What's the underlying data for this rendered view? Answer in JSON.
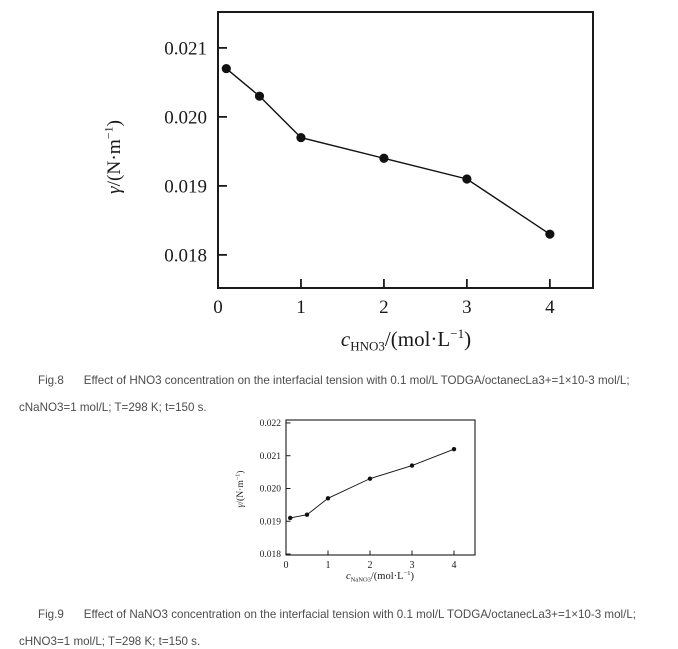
{
  "page": {
    "background": "#ffffff",
    "caption_text_color": "#4c4c4c",
    "axis_color": "#1a1a1a"
  },
  "figures": [
    {
      "label": "Fig.8",
      "caption_line1": "Effect of HNO3 concentration on the interfacial tension with 0.1 mol/L TODGA/octanecLa3+=1×10-3 mol/L;",
      "caption_line2": "cNaNO3=1 mol/L; T=298 K; t=150 s."
    },
    {
      "label": "Fig.9",
      "caption_line1": "Effect of NaNO3 concentration on the interfacial tension with 0.1 mol/L TODGA/octanecLa3+=1×10-3 mol/L;",
      "caption_line2": "cHNO3=1 mol/L; T=298 K; t=150 s."
    }
  ],
  "chart_data": [
    {
      "id": "fig8",
      "type": "line",
      "title": "",
      "series_name": "interfacial tension vs HNO3 concentration",
      "x": [
        0.1,
        0.5,
        1,
        2,
        3,
        4
      ],
      "y": [
        0.0207,
        0.0203,
        0.0197,
        0.0194,
        0.0191,
        0.0183
      ],
      "xlabel": "c_HNO3/(mol·L−1)",
      "ylabel": "γ/(N·m−1)",
      "xlabel_parts": [
        [
          "c",
          "i"
        ],
        [
          "HNO3",
          "sub"
        ],
        [
          "/(mol·L",
          "n"
        ],
        [
          "−1",
          "sup"
        ],
        [
          ")",
          "n"
        ]
      ],
      "ylabel_parts": [
        [
          "γ",
          "i"
        ],
        [
          "/(N·m",
          "n"
        ],
        [
          "−1",
          "sup"
        ],
        [
          ")",
          "n"
        ]
      ],
      "xticks": [
        0,
        1,
        2,
        3,
        4
      ],
      "xtick_labels": [
        "0",
        "1",
        "2",
        "3",
        "4"
      ],
      "yticks": [
        0.018,
        0.019,
        0.02,
        0.021
      ],
      "ytick_labels": [
        "0.018",
        "0.019",
        "0.020",
        "0.021"
      ],
      "xlim": [
        0,
        4.52
      ],
      "ylim": [
        0.01752,
        0.02152
      ],
      "grid": false,
      "legend": null,
      "marker": "filled-circle",
      "line_color": "#111111"
    },
    {
      "id": "fig9",
      "type": "line",
      "title": "",
      "series_name": "interfacial tension vs NaNO3 concentration",
      "x": [
        0.1,
        0.5,
        1,
        2,
        3,
        4
      ],
      "y": [
        0.0191,
        0.0192,
        0.0197,
        0.0203,
        0.0207,
        0.0212
      ],
      "xlabel": "c_NaNO3/(mol·L−1)",
      "ylabel": "γ/(N·m−1)",
      "xlabel_parts": [
        [
          "c",
          "i"
        ],
        [
          "NaNO3",
          "sub"
        ],
        [
          "/(mol·L",
          "n"
        ],
        [
          "−1",
          "sup"
        ],
        [
          ")",
          "n"
        ]
      ],
      "ylabel_parts": [
        [
          "γ",
          "i"
        ],
        [
          "/(N·m",
          "n"
        ],
        [
          "−1",
          "sup"
        ],
        [
          ")",
          "n"
        ]
      ],
      "xticks": [
        0,
        1,
        2,
        3,
        4
      ],
      "xtick_labels": [
        "0",
        "1",
        "2",
        "3",
        "4"
      ],
      "yticks": [
        0.018,
        0.019,
        0.02,
        0.021,
        0.022
      ],
      "ytick_labels": [
        "0.018",
        "0.019",
        "0.020",
        "0.021",
        "0.022"
      ],
      "xlim": [
        0,
        4.5
      ],
      "ylim": [
        0.01797,
        0.02209
      ],
      "grid": false,
      "legend": null,
      "marker": "filled-circle",
      "line_color": "#111111"
    }
  ]
}
